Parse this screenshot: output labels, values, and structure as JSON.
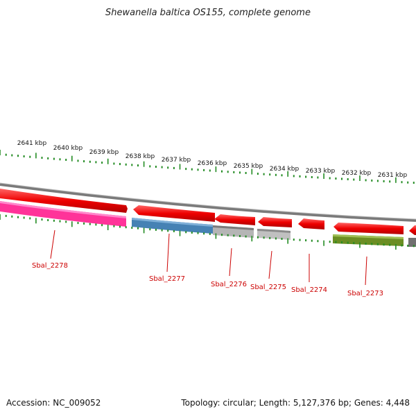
{
  "title": "Shewanella baltica OS155, complete genome",
  "ticks": [
    "2641 kbp",
    "2640 kbp",
    "2639 kbp",
    "2638 kbp",
    "2637 kbp",
    "2636 kbp",
    "2635 kbp",
    "2634 kbp",
    "2633 kbp",
    "2632 kbp",
    "2631 kbp"
  ],
  "genes": [
    "Sbal_2278",
    "Sbal_2277",
    "Sbal_2276",
    "Sbal_2275",
    "Sbal_2274",
    "Sbal_2273"
  ],
  "footer": {
    "accession": "Accession: NC_009052",
    "summary": "Topology: circular; Length: 5,127,376 bp; Genes: 4,448"
  },
  "colors": {
    "forward_cds": "#ff0000",
    "backbone": "#808080",
    "ticks": "#228b22",
    "label": "#cc0000",
    "sbal_2278": "#ff3399",
    "sbal_2277": "#4682b4",
    "sbal_2276": "#b0b0b0",
    "sbal_2275": "#b0b0b0",
    "sbal_2273": "#6b8e23"
  }
}
